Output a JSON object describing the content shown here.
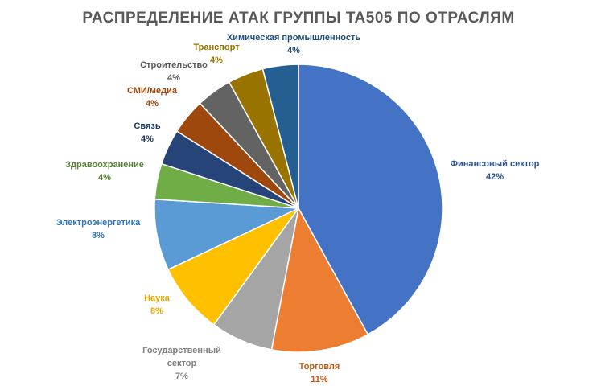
{
  "chart_data": {
    "type": "pie",
    "title": "РАСПРЕДЕЛЕНИЕ  АТАК ГРУППЫ TA505 ПО ОТРАСЛЯМ",
    "slices": [
      {
        "name": "Финансовый  сектор",
        "value": 42,
        "label": "42%",
        "color": "#4472C4",
        "label_color": "#2F5597"
      },
      {
        "name": "Торговля",
        "value": 11,
        "label": "11%",
        "color": "#ED7D31",
        "label_color": "#C55A11"
      },
      {
        "name": "Государственный сектор",
        "value": 7,
        "label": "7%",
        "color": "#A5A5A5",
        "label_color": "#7F7F7F"
      },
      {
        "name": "Наука",
        "value": 8,
        "label": "8%",
        "color": "#FFC000",
        "label_color": "#E6A800"
      },
      {
        "name": "Электроэнергетика",
        "value": 8,
        "label": "8%",
        "color": "#5B9BD5",
        "label_color": "#2E75B6"
      },
      {
        "name": "Здравоохранение",
        "value": 4,
        "label": "4%",
        "color": "#70AD47",
        "label_color": "#548235"
      },
      {
        "name": "Связь",
        "value": 4,
        "label": "4%",
        "color": "#264478",
        "label_color": "#1F3864"
      },
      {
        "name": "СМИ/медиа",
        "value": 4,
        "label": "4%",
        "color": "#9E480E",
        "label_color": "#9E480E"
      },
      {
        "name": "Строительство",
        "value": 4,
        "label": "4%",
        "color": "#636363",
        "label_color": "#595959"
      },
      {
        "name": "Транспорт",
        "value": 4,
        "label": "4%",
        "color": "#997300",
        "label_color": "#997300"
      },
      {
        "name": "Химическая  промышленность",
        "value": 4,
        "label": "4%",
        "color": "#255E91",
        "label_color": "#1F4E79"
      }
    ]
  }
}
